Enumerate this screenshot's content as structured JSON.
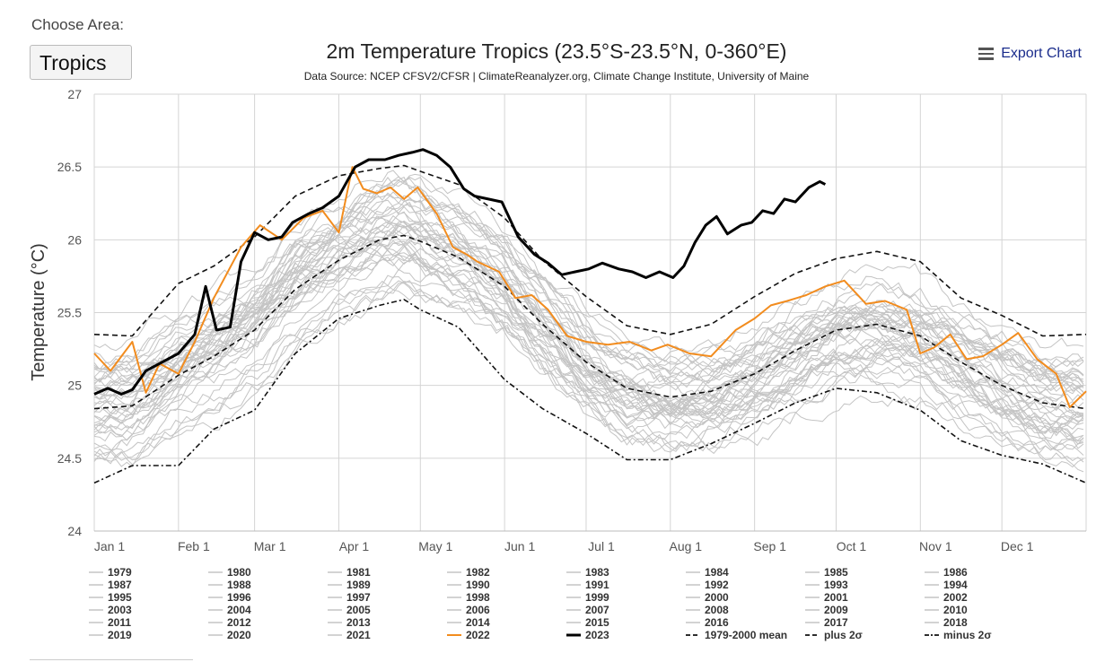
{
  "area_selector": {
    "label": "Choose Area:",
    "selected": "Tropics"
  },
  "header": {
    "title": "2m Temperature Tropics (23.5°S-23.5°N, 0-360°E)",
    "subtitle": "Data Source: NCEP CFSV2/CFSR | ClimateReanalyzer.org, Climate Change Institute, University of Maine",
    "export_label": "Export Chart",
    "export_icon": "hamburger-menu-icon"
  },
  "colors": {
    "historical": "#c4c4c4",
    "year_2022": "#f28c1e",
    "year_2023": "#000000",
    "reference": "#111111",
    "grid": "#d4d4d4"
  },
  "chart_data": {
    "type": "line",
    "title": "2m Temperature Tropics (23.5°S-23.5°N, 0-360°E)",
    "ylabel": "Temperature (°C)",
    "xlabel": "",
    "ylim": [
      24,
      27
    ],
    "yticks": [
      "24",
      "24.5",
      "25",
      "25.5",
      "26",
      "26.5",
      "27"
    ],
    "xlim": [
      1,
      366
    ],
    "xticks": [
      {
        "day": 1,
        "label": "Jan 1"
      },
      {
        "day": 32,
        "label": "Feb 1"
      },
      {
        "day": 60,
        "label": "Mar 1"
      },
      {
        "day": 91,
        "label": "Apr 1"
      },
      {
        "day": 121,
        "label": "May 1"
      },
      {
        "day": 152,
        "label": "Jun 1"
      },
      {
        "day": 182,
        "label": "Jul 1"
      },
      {
        "day": 213,
        "label": "Aug 1"
      },
      {
        "day": 244,
        "label": "Sep 1"
      },
      {
        "day": 274,
        "label": "Oct 1"
      },
      {
        "day": 305,
        "label": "Nov 1"
      },
      {
        "day": 335,
        "label": "Dec 1"
      }
    ],
    "grid": true,
    "legend_position": "bottom",
    "historical_years": [
      "1979",
      "1980",
      "1981",
      "1982",
      "1983",
      "1984",
      "1985",
      "1986",
      "1987",
      "1988",
      "1989",
      "1990",
      "1991",
      "1992",
      "1993",
      "1994",
      "1995",
      "1996",
      "1997",
      "1998",
      "1999",
      "2000",
      "2001",
      "2002",
      "2003",
      "2004",
      "2005",
      "2006",
      "2007",
      "2008",
      "2009",
      "2010",
      "2011",
      "2012",
      "2013",
      "2014",
      "2015",
      "2016",
      "2017",
      "2018",
      "2019",
      "2020",
      "2021"
    ],
    "legend": [
      "1979",
      "1980",
      "1981",
      "1982",
      "1983",
      "1984",
      "1985",
      "1986",
      "1987",
      "1988",
      "1989",
      "1990",
      "1991",
      "1992",
      "1993",
      "1994",
      "1995",
      "1996",
      "1997",
      "1998",
      "1999",
      "2000",
      "2001",
      "2002",
      "2003",
      "2004",
      "2005",
      "2006",
      "2007",
      "2008",
      "2009",
      "2010",
      "2011",
      "2012",
      "2013",
      "2014",
      "2015",
      "2016",
      "2017",
      "2018",
      "2019",
      "2020",
      "2021",
      "2022",
      "2023",
      "1979-2000 mean",
      "plus 2σ",
      "minus 2σ"
    ],
    "series": [
      {
        "name": "1979-2000 mean",
        "style": "dashed",
        "x": [
          1,
          15,
          32,
          45,
          60,
          75,
          91,
          106,
          115,
          121,
          135,
          152,
          166,
          182,
          197,
          213,
          228,
          244,
          259,
          274,
          289,
          305,
          320,
          335,
          350,
          366
        ],
        "y": [
          24.84,
          24.86,
          25.07,
          25.2,
          25.38,
          25.66,
          25.86,
          26.0,
          26.03,
          25.99,
          25.88,
          25.68,
          25.42,
          25.16,
          24.98,
          24.92,
          24.96,
          25.08,
          25.24,
          25.38,
          25.42,
          25.34,
          25.16,
          25.0,
          24.88,
          24.84
        ]
      },
      {
        "name": "plus 2σ",
        "style": "dashed",
        "x": [
          1,
          15,
          32,
          45,
          60,
          75,
          91,
          106,
          115,
          121,
          135,
          152,
          166,
          182,
          197,
          213,
          228,
          244,
          259,
          274,
          289,
          305,
          320,
          335,
          350,
          366
        ],
        "y": [
          25.35,
          25.34,
          25.7,
          25.82,
          26.02,
          26.3,
          26.44,
          26.49,
          26.51,
          26.47,
          26.38,
          26.15,
          25.86,
          25.61,
          25.41,
          25.35,
          25.42,
          25.61,
          25.77,
          25.87,
          25.92,
          25.85,
          25.6,
          25.48,
          25.34,
          25.35
        ]
      },
      {
        "name": "minus 2σ",
        "style": "dashed",
        "x": [
          1,
          15,
          32,
          45,
          60,
          75,
          91,
          106,
          115,
          121,
          135,
          152,
          166,
          182,
          197,
          213,
          228,
          244,
          259,
          274,
          289,
          305,
          320,
          335,
          350,
          366
        ],
        "y": [
          24.33,
          24.45,
          24.45,
          24.7,
          24.83,
          25.22,
          25.46,
          25.55,
          25.59,
          25.52,
          25.4,
          25.04,
          24.84,
          24.67,
          24.49,
          24.49,
          24.6,
          24.74,
          24.88,
          24.98,
          24.95,
          24.83,
          24.62,
          24.52,
          24.46,
          24.33
        ]
      },
      {
        "name": "2022",
        "x": [
          1,
          7,
          15,
          20,
          25,
          32,
          38,
          45,
          55,
          62,
          70,
          78,
          85,
          91,
          96,
          100,
          105,
          110,
          115,
          120,
          127,
          133,
          138,
          142,
          150,
          156,
          162,
          168,
          175,
          182,
          190,
          198,
          206,
          212,
          220,
          228,
          237,
          244,
          250,
          256,
          263,
          270,
          277,
          285,
          292,
          300,
          305,
          310,
          316,
          322,
          328,
          335,
          341,
          348,
          355,
          360,
          366
        ],
        "y": [
          25.22,
          25.1,
          25.3,
          24.95,
          25.15,
          25.08,
          25.3,
          25.6,
          25.95,
          26.1,
          26.0,
          26.15,
          26.2,
          26.05,
          26.5,
          26.35,
          26.32,
          26.36,
          26.28,
          26.36,
          26.18,
          25.95,
          25.9,
          25.85,
          25.78,
          25.6,
          25.62,
          25.52,
          25.34,
          25.3,
          25.28,
          25.3,
          25.24,
          25.28,
          25.22,
          25.2,
          25.38,
          25.46,
          25.55,
          25.58,
          25.62,
          25.68,
          25.72,
          25.56,
          25.58,
          25.52,
          25.22,
          25.26,
          25.35,
          25.18,
          25.2,
          25.28,
          25.36,
          25.18,
          25.08,
          24.85,
          24.96
        ]
      },
      {
        "name": "2023",
        "x": [
          1,
          6,
          11,
          15,
          20,
          25,
          32,
          38,
          42,
          46,
          51,
          55,
          60,
          65,
          70,
          74,
          80,
          85,
          91,
          97,
          102,
          108,
          113,
          118,
          122,
          127,
          132,
          137,
          141,
          146,
          151,
          157,
          163,
          168,
          173,
          178,
          183,
          188,
          194,
          199,
          204,
          209,
          214,
          218,
          222,
          226,
          230,
          234,
          239,
          243,
          247,
          251,
          255,
          259,
          264,
          268,
          270
        ],
        "y": [
          24.94,
          24.98,
          24.94,
          24.97,
          25.1,
          25.15,
          25.22,
          25.35,
          25.68,
          25.38,
          25.4,
          25.85,
          26.05,
          26.0,
          26.02,
          26.12,
          26.18,
          26.22,
          26.3,
          26.5,
          26.55,
          26.55,
          26.58,
          26.6,
          26.62,
          26.58,
          26.5,
          26.35,
          26.3,
          26.28,
          26.26,
          26.02,
          25.9,
          25.84,
          25.76,
          25.78,
          25.8,
          25.84,
          25.8,
          25.78,
          25.74,
          25.78,
          25.74,
          25.82,
          25.98,
          26.1,
          26.16,
          26.04,
          26.1,
          26.12,
          26.2,
          26.18,
          26.28,
          26.26,
          26.36,
          26.4,
          26.38
        ]
      }
    ]
  }
}
